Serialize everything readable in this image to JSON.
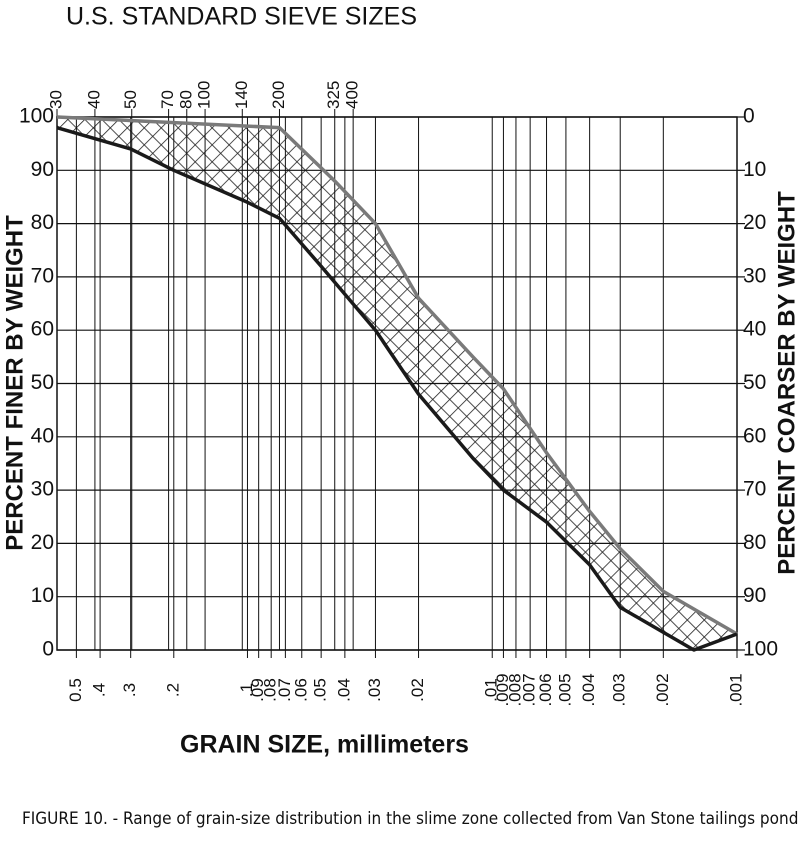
{
  "chart_data": {
    "type": "line",
    "title": "U.S. STANDARD SIEVE SIZES",
    "x_label": "GRAIN SIZE, millimeters",
    "y_label": "PERCENT FINER BY WEIGHT",
    "y2_label": "PERCENT COARSER BY WEIGHT",
    "caption": "FIGURE 10. - Range of grain-size distribution in the slime zone collected from Van Stone tailings pond.",
    "xscale": "log",
    "grid": true,
    "xlim": [
      0.6,
      0.001
    ],
    "xticks": [
      0.5,
      {
        "value": 0.4,
        "label": ".4"
      },
      {
        "value": 0.3,
        "label": ".3"
      },
      {
        "value": 0.2,
        "label": ".2"
      },
      {
        "value": 0.1,
        "label": ".1"
      },
      {
        "value": 0.09,
        "label": ".09"
      },
      {
        "value": 0.08,
        "label": ".08"
      },
      {
        "value": 0.07,
        "label": ".07"
      },
      {
        "value": 0.06,
        "label": ".06"
      },
      {
        "value": 0.05,
        "label": ".05"
      },
      {
        "value": 0.04,
        "label": ".04"
      },
      {
        "value": 0.03,
        "label": ".03"
      },
      {
        "value": 0.02,
        "label": ".02"
      },
      {
        "value": 0.01,
        "label": ".01"
      },
      {
        "value": 0.009,
        "label": ".009"
      },
      {
        "value": 0.008,
        "label": ".008"
      },
      {
        "value": 0.007,
        "label": ".007"
      },
      {
        "value": 0.006,
        "label": ".006"
      },
      {
        "value": 0.005,
        "label": ".005"
      },
      {
        "value": 0.004,
        "label": ".004"
      },
      {
        "value": 0.003,
        "label": ".003"
      },
      {
        "value": 0.002,
        "label": ".002"
      },
      {
        "value": 0.001,
        "label": ".001"
      }
    ],
    "x2ticks": [
      {
        "value": 0.6,
        "label": "30"
      },
      {
        "value": 0.42,
        "label": "40"
      },
      {
        "value": 0.297,
        "label": "50"
      },
      {
        "value": 0.21,
        "label": "70"
      },
      {
        "value": 0.177,
        "label": "80"
      },
      {
        "value": 0.149,
        "label": "100"
      },
      {
        "value": 0.105,
        "label": "140"
      },
      {
        "value": 0.074,
        "label": "200"
      },
      {
        "value": 0.044,
        "label": "325"
      },
      {
        "value": 0.037,
        "label": "400"
      }
    ],
    "ylim": [
      0,
      100
    ],
    "yticks": [
      0,
      10,
      20,
      30,
      40,
      50,
      60,
      70,
      80,
      90,
      100
    ],
    "y2lim": [
      100,
      0
    ],
    "y2ticks": [
      0,
      10,
      20,
      30,
      40,
      50,
      60,
      70,
      80,
      90,
      100
    ],
    "series": [
      {
        "color": "#7a7a7a",
        "x": [
          0.6,
          0.074,
          0.044,
          0.03,
          0.02,
          0.012,
          0.009,
          0.006,
          0.004,
          0.003,
          0.002,
          0.001
        ],
        "values": [
          100,
          98,
          88,
          80,
          66,
          55,
          49,
          37,
          26,
          19,
          11,
          3
        ]
      },
      {
        "color": "#1a1a1a",
        "x": [
          0.6,
          0.3,
          0.2,
          0.1,
          0.074,
          0.05,
          0.03,
          0.02,
          0.012,
          0.009,
          0.006,
          0.004,
          0.003,
          0.0015,
          0.001
        ],
        "values": [
          98,
          94,
          90,
          84,
          81,
          72,
          60,
          48,
          36,
          30,
          24,
          16,
          8,
          0,
          3
        ]
      }
    ]
  }
}
